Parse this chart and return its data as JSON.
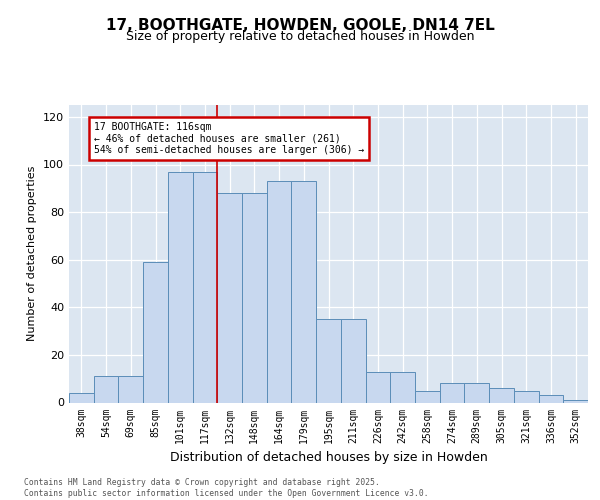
{
  "title": "17, BOOTHGATE, HOWDEN, GOOLE, DN14 7EL",
  "subtitle": "Size of property relative to detached houses in Howden",
  "xlabel": "Distribution of detached houses by size in Howden",
  "ylabel": "Number of detached properties",
  "categories": [
    "38sqm",
    "54sqm",
    "69sqm",
    "85sqm",
    "101sqm",
    "117sqm",
    "132sqm",
    "148sqm",
    "164sqm",
    "179sqm",
    "195sqm",
    "211sqm",
    "226sqm",
    "242sqm",
    "258sqm",
    "274sqm",
    "289sqm",
    "305sqm",
    "321sqm",
    "336sqm",
    "352sqm"
  ],
  "bar_heights": [
    4,
    11,
    11,
    59,
    97,
    97,
    88,
    88,
    93,
    93,
    35,
    35,
    13,
    13,
    5,
    8,
    8,
    6,
    5,
    3,
    1
  ],
  "bar_color": "#c8d8ef",
  "bar_edge_color": "#5b8db8",
  "background_color": "#dce6f1",
  "red_line_x": 5.5,
  "annotation_line1": "17 BOOTHGATE: 116sqm",
  "annotation_line2": "← 46% of detached houses are smaller (261)",
  "annotation_line3": "54% of semi-detached houses are larger (306) →",
  "annotation_box_facecolor": "#ffffff",
  "annotation_box_edgecolor": "#cc0000",
  "footer_line1": "Contains HM Land Registry data © Crown copyright and database right 2025.",
  "footer_line2": "Contains public sector information licensed under the Open Government Licence v3.0.",
  "ylim_max": 125,
  "yticks": [
    0,
    20,
    40,
    60,
    80,
    100,
    120
  ],
  "title_fontsize": 11,
  "subtitle_fontsize": 9,
  "tick_fontsize": 7,
  "ylabel_fontsize": 8,
  "xlabel_fontsize": 9
}
